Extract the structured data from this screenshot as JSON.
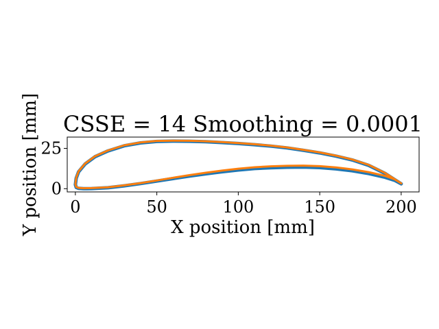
{
  "chart_data": {
    "type": "line",
    "title": "CSSE = 14 Smoothing = 0.0001",
    "xlabel": "X position [mm]",
    "ylabel": "Y position [mm]",
    "xlim": [
      -5,
      211
    ],
    "ylim": [
      -2,
      32
    ],
    "xticks": [
      0,
      50,
      100,
      150,
      200
    ],
    "yticks": [
      0,
      25
    ],
    "grid": false,
    "series": [
      {
        "color": "#1f77b4",
        "x": [
          200,
          190,
          180,
          170,
          160,
          150,
          140,
          130,
          120,
          110,
          100,
          90,
          80,
          70,
          60,
          50,
          40,
          30,
          20,
          12,
          6,
          2,
          0.5,
          0,
          0.5,
          2,
          5,
          10,
          20,
          30,
          40,
          50,
          60,
          70,
          80,
          90,
          100,
          110,
          120,
          130,
          140,
          150,
          160,
          170,
          180,
          190,
          196,
          200
        ],
        "y": [
          3,
          9.5,
          14.5,
          17.8,
          20.2,
          22.2,
          23.8,
          25.3,
          26.4,
          27.3,
          28,
          28.6,
          29.1,
          29.4,
          29.5,
          29.3,
          28.4,
          26.6,
          23.4,
          19.8,
          15.3,
          10.5,
          6.5,
          2.5,
          0.8,
          0.2,
          0,
          0.1,
          0.6,
          1.8,
          3.2,
          4.7,
          6.3,
          7.8,
          9.2,
          10.5,
          11.6,
          12.5,
          13,
          13.3,
          13.4,
          13.1,
          12.3,
          11.1,
          9.4,
          7.1,
          5.2,
          3
        ]
      },
      {
        "color": "#ff7f0e",
        "x": [
          200,
          190,
          180,
          170,
          160,
          150,
          140,
          130,
          120,
          110,
          100,
          90,
          80,
          70,
          60,
          50,
          40,
          30,
          20,
          12,
          6,
          2,
          0.5,
          0,
          0.5,
          2,
          5,
          10,
          20,
          30,
          40,
          50,
          60,
          70,
          80,
          90,
          100,
          110,
          120,
          130,
          140,
          150,
          160,
          170,
          180,
          190,
          196,
          200
        ],
        "y": [
          3.3,
          9.8,
          14.8,
          18.1,
          20.5,
          22.5,
          24.1,
          25.6,
          26.7,
          27.6,
          28.3,
          28.9,
          29.4,
          29.7,
          29.8,
          29.6,
          28.7,
          26.9,
          23.7,
          20.1,
          15.6,
          10.8,
          6.8,
          2.8,
          1.1,
          0.5,
          0.3,
          0.4,
          0.9,
          2.1,
          3.5,
          5.1,
          6.8,
          8.4,
          9.9,
          11.2,
          12.4,
          13.3,
          13.9,
          14.2,
          14.3,
          14,
          13.2,
          12,
          10.3,
          8,
          5.8,
          3.3
        ]
      }
    ]
  }
}
